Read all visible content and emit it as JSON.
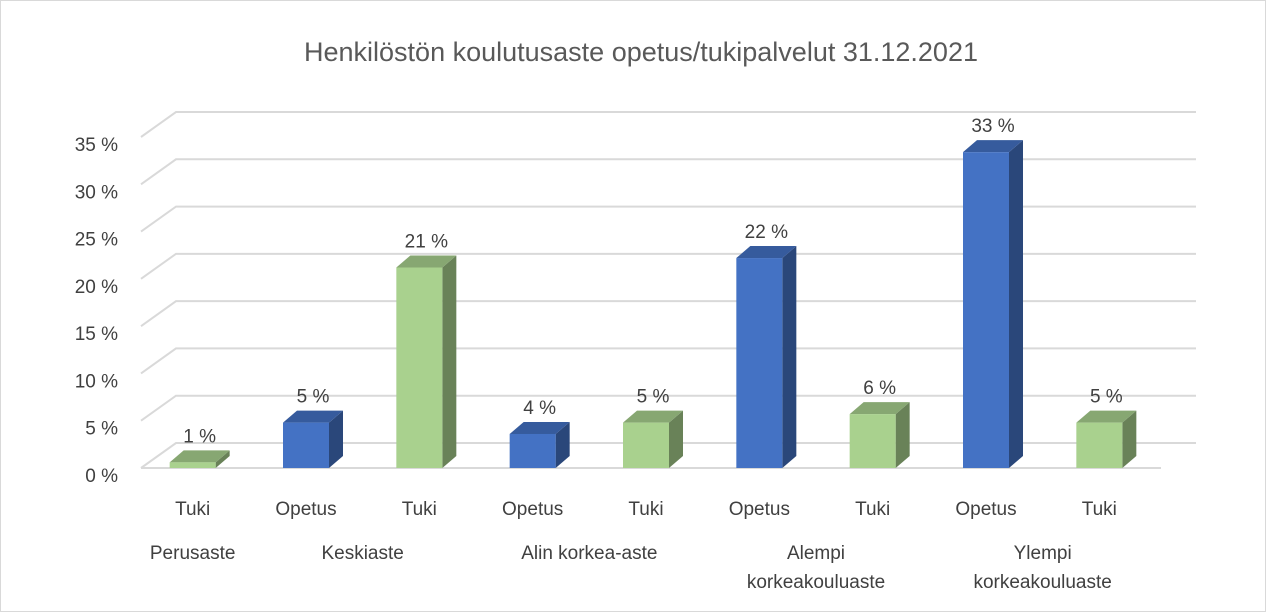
{
  "chart_data": {
    "type": "bar3d",
    "title": "Henkilöstön koulutusaste opetus/tukipalvelut 31.12.2021",
    "categories": [
      "Tuki",
      "Opetus",
      "Tuki",
      "Opetus",
      "Tuki",
      "Opetus",
      "Tuki",
      "Opetus",
      "Tuki"
    ],
    "values": [
      0.6,
      4.8,
      21.2,
      3.6,
      4.8,
      22.2,
      5.7,
      33.4,
      4.8
    ],
    "value_labels": [
      "1 %",
      "5 %",
      "21 %",
      "4 %",
      "5 %",
      "22 %",
      "6 %",
      "33 %",
      "5 %"
    ],
    "colors": [
      "#a9d18e",
      "#4472c4",
      "#a9d18e",
      "#4472c4",
      "#a9d18e",
      "#4472c4",
      "#a9d18e",
      "#4472c4",
      "#a9d18e"
    ],
    "groups": [
      {
        "name": "Perusaste",
        "count": 1
      },
      {
        "name": "Keskiaste",
        "count": 2
      },
      {
        "name": "Alin korkea-aste",
        "count": 2
      },
      {
        "name": "Alempi korkeakouluaste",
        "count": 2
      },
      {
        "name": "Ylempi korkeakouluaste",
        "count": 2
      }
    ],
    "ylim": [
      0,
      35
    ],
    "yticks": [
      {
        "value": 0,
        "label": "0 %"
      },
      {
        "value": 5,
        "label": "5 %"
      },
      {
        "value": 10,
        "label": "10 %"
      },
      {
        "value": 15,
        "label": "15 %"
      },
      {
        "value": 20,
        "label": "20 %"
      },
      {
        "value": 25,
        "label": "25 %"
      },
      {
        "value": 30,
        "label": "30 %"
      },
      {
        "value": 35,
        "label": "35 %"
      }
    ],
    "grid": true
  }
}
